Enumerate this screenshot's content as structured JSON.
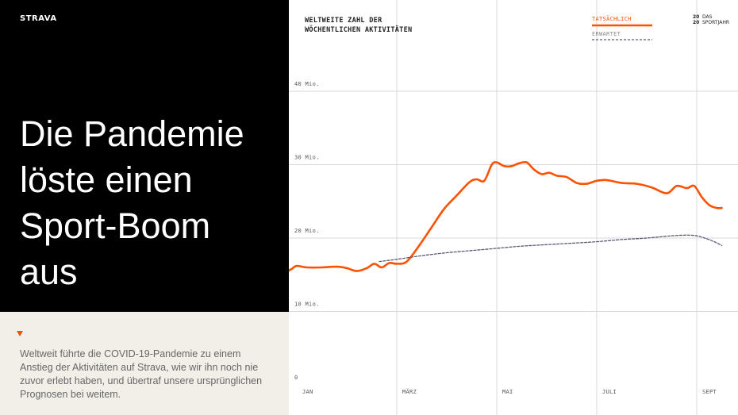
{
  "brand": "STRAVA",
  "headline": [
    "Die Pandemie",
    "löste einen",
    "Sport-Boom",
    "aus"
  ],
  "caption": "Weltweit führte die COVID-19-Pandemie zu einem Anstieg der Aktivitäten auf Strava, wie wir ihn noch nie zuvor erlebt haben, und übertraf unsere ursprünglichen Prognosen bei weitem.",
  "badge": {
    "num1": "20",
    "text1": "DAS",
    "num2": "20",
    "text2": "SPORTJAHR"
  },
  "colors": {
    "actual": "#fc5200",
    "expected": "#5a5a78",
    "accent": "#fc5200",
    "panel": "#000000",
    "caption_bg": "#f1efe8"
  },
  "chart_data": {
    "type": "line",
    "title": [
      "WELTWEITE ZAHL DER",
      "WÖCHENTLICHEN AKTIVITÄTEN"
    ],
    "xlabel": "",
    "ylabel": "",
    "x_ticks": [
      "JAN",
      "MÄRZ",
      "MAI",
      "JULI",
      "SEPT"
    ],
    "x_tick_pos": [
      0,
      2,
      4,
      6,
      8
    ],
    "xlim": [
      0,
      8.5
    ],
    "y_ticks": [
      {
        "value": 0,
        "label": "0"
      },
      {
        "value": 10,
        "label": "10 Mio."
      },
      {
        "value": 20,
        "label": "20 Mio."
      },
      {
        "value": 30,
        "label": "30 Mio."
      },
      {
        "value": 40,
        "label": "40 Mio."
      }
    ],
    "ylim": [
      0,
      40
    ],
    "grid": true,
    "legend": "top-right",
    "series": [
      {
        "name": "TATSÄCHLICH",
        "style": "solid",
        "x": [
          -0.2,
          -0.1,
          0.0,
          0.2,
          0.5,
          0.8,
          1.0,
          1.2,
          1.4,
          1.55,
          1.7,
          1.85,
          2.0,
          2.2,
          2.45,
          2.7,
          2.95,
          3.2,
          3.45,
          3.6,
          3.75,
          3.9,
          4.0,
          4.15,
          4.3,
          4.45,
          4.6,
          4.75,
          4.9,
          5.05,
          5.2,
          5.4,
          5.6,
          5.8,
          6.0,
          6.2,
          6.5,
          6.8,
          7.1,
          7.4,
          7.6,
          7.8,
          7.95,
          8.1,
          8.25,
          8.4,
          8.5
        ],
        "values": [
          15.4,
          15.8,
          16.2,
          16.0,
          16.0,
          16.1,
          15.9,
          15.5,
          15.9,
          16.5,
          16.0,
          16.6,
          16.5,
          16.8,
          19.0,
          21.5,
          24.0,
          25.8,
          27.6,
          28.0,
          27.8,
          30.0,
          30.3,
          29.8,
          29.8,
          30.2,
          30.3,
          29.3,
          28.7,
          28.9,
          28.5,
          28.3,
          27.5,
          27.4,
          27.8,
          27.9,
          27.5,
          27.4,
          26.9,
          26.1,
          27.1,
          26.8,
          27.1,
          25.6,
          24.5,
          24.1,
          24.1
        ]
      },
      {
        "name": "ERWARTET",
        "style": "dashed",
        "x": [
          1.65,
          2.0,
          2.5,
          3.0,
          3.5,
          4.0,
          4.5,
          5.0,
          5.5,
          6.0,
          6.5,
          7.0,
          7.5,
          7.8,
          8.0,
          8.2,
          8.35,
          8.5
        ],
        "values": [
          16.8,
          17.1,
          17.6,
          18.0,
          18.3,
          18.6,
          18.9,
          19.1,
          19.3,
          19.5,
          19.8,
          20.0,
          20.3,
          20.4,
          20.3,
          19.9,
          19.5,
          19.0
        ]
      }
    ]
  }
}
